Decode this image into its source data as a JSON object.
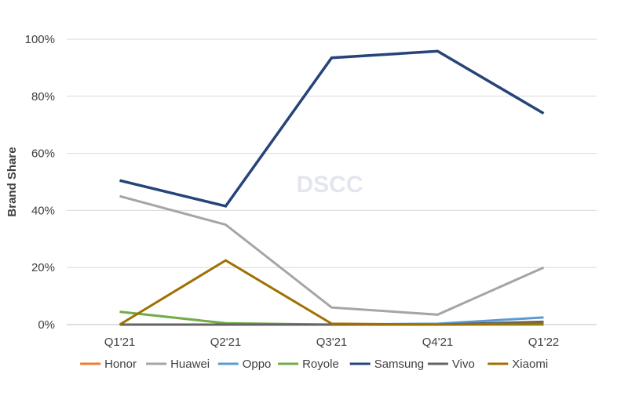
{
  "chart_data": {
    "type": "line",
    "title": "",
    "xlabel": "",
    "ylabel": "Brand Share",
    "watermark": "DSCC",
    "categories": [
      "Q1'21",
      "Q2'21",
      "Q3'21",
      "Q4'21",
      "Q1'22"
    ],
    "ylim": [
      0,
      100
    ],
    "yticks": [
      "0%",
      "20%",
      "40%",
      "60%",
      "80%",
      "100%"
    ],
    "grid": "horizontal",
    "legend_position": "bottom",
    "series": [
      {
        "name": "Honor",
        "color": "#ed7d31",
        "values": [
          0,
          0,
          0,
          0,
          0.5
        ]
      },
      {
        "name": "Huawei",
        "color": "#a5a5a5",
        "values": [
          45,
          35,
          6,
          3.5,
          20
        ]
      },
      {
        "name": "Oppo",
        "color": "#5b9bd5",
        "values": [
          0,
          0,
          0,
          0.3,
          2.5
        ]
      },
      {
        "name": "Royole",
        "color": "#70ad47",
        "values": [
          4.5,
          0.5,
          0,
          0,
          0
        ]
      },
      {
        "name": "Samsung",
        "color": "#264478",
        "values": [
          50.5,
          41.5,
          93.5,
          95.8,
          74
        ]
      },
      {
        "name": "Vivo",
        "color": "#636363",
        "values": [
          0,
          0,
          0,
          0,
          1
        ]
      },
      {
        "name": "Xiaomi",
        "color": "#9e7000",
        "values": [
          0,
          22.5,
          0.3,
          0,
          0.3
        ]
      }
    ]
  }
}
